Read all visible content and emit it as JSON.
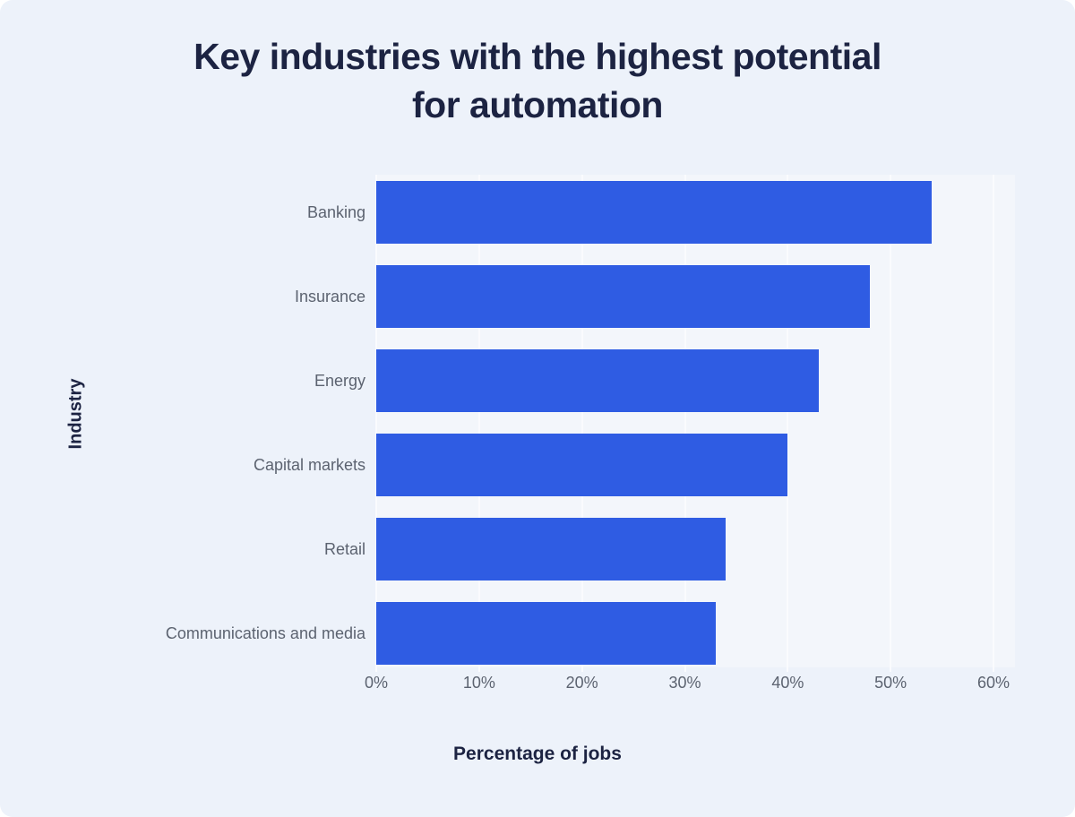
{
  "title": "Key industries with the highest potential for automation",
  "chart_data": {
    "type": "bar",
    "orientation": "horizontal",
    "title": "Key industries with the highest potential for automation",
    "categories": [
      "Banking",
      "Insurance",
      "Energy",
      "Capital markets",
      "Retail",
      "Communications and media"
    ],
    "values": [
      54,
      48,
      43,
      40,
      34,
      33
    ],
    "unit": "%",
    "xlabel": "Percentage of jobs",
    "ylabel": "Industry",
    "xlim": [
      0,
      60
    ],
    "x_ticks": [
      "0%",
      "10%",
      "20%",
      "30%",
      "40%",
      "50%",
      "60%"
    ],
    "grid": "vertical-only",
    "legend": "none",
    "colors": {
      "bar": "#2f5ce3",
      "card_background": "#edf2fa",
      "plot_background": "#f3f6fb",
      "gridline": "#fafbfe",
      "heading_text": "#1c2342",
      "label_text": "#5c6370"
    }
  }
}
